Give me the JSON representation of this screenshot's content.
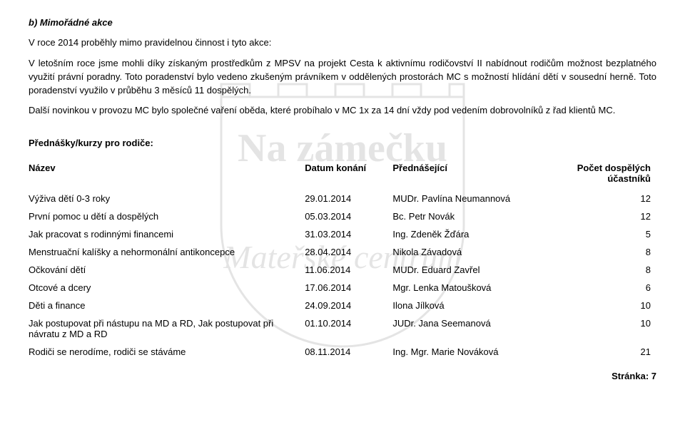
{
  "section_label": "b)   Mimořádné akce",
  "paragraphs": [
    "V roce 2014 proběhly mimo pravidelnou činnost i tyto akce:",
    "V letošním roce jsme mohli díky získaným prostředkům z MPSV na projekt Cesta k aktivnímu rodičovství II nabídnout rodičům možnost bezplatného využití právní poradny. Toto poradenství bylo vedeno zkušeným právníkem v oddělených prostorách MC s možností hlídání dětí v sousední herně. Toto poradenství využilo v průběhu 3 měsíců 11 dospělých.",
    "Další novinkou v provozu MC bylo společné vaření oběda, které probíhalo v MC 1x za 14 dní vždy pod vedením dobrovolníků z řad klientů MC."
  ],
  "subheading": "Přednášky/kurzy pro rodiče:",
  "table": {
    "headers": {
      "name": "Název",
      "date": "Datum konání",
      "lecturer": "Přednášející",
      "count": "Počet dospělých účastníků"
    },
    "rows": [
      {
        "name": "Výživa dětí 0-3 roky",
        "date": "29.01.2014",
        "lecturer": "MUDr. Pavlína Neumannová",
        "count": "12"
      },
      {
        "name": "První pomoc u dětí a dospělých",
        "date": "05.03.2014",
        "lecturer": "Bc. Petr Novák",
        "count": "12"
      },
      {
        "name": "Jak pracovat s rodinnými financemi",
        "date": "31.03.2014",
        "lecturer": "Ing. Zdeněk Žďára",
        "count": "5"
      },
      {
        "name": "Menstruační kalíšky a nehormonální antikoncepce",
        "date": "28.04.2014",
        "lecturer": "Nikola Závadová",
        "count": "8"
      },
      {
        "name": "Očkování dětí",
        "date": "11.06.2014",
        "lecturer": "MUDr. Eduard Zavřel",
        "count": "8"
      },
      {
        "name": "Otcové a dcery",
        "date": "17.06.2014",
        "lecturer": "Mgr. Lenka Matoušková",
        "count": "6"
      },
      {
        "name": "Děti a finance",
        "date": "24.09.2014",
        "lecturer": "Ilona Jílková",
        "count": "10"
      },
      {
        "name": "Jak postupovat při nástupu na MD a RD, Jak postupovat při návratu z MD a RD",
        "date": "01.10.2014",
        "lecturer": "JUDr. Jana Seemanová",
        "count": "10"
      },
      {
        "name": "Rodiči se nerodíme, rodiči se stáváme",
        "date": "08.11.2014",
        "lecturer": "Ing. Mgr. Marie Nováková",
        "count": "21"
      }
    ]
  },
  "page_label": "Stránka: 7",
  "watermark": {
    "line1": "Na zámečku",
    "line2": "Mateřské centrum"
  }
}
